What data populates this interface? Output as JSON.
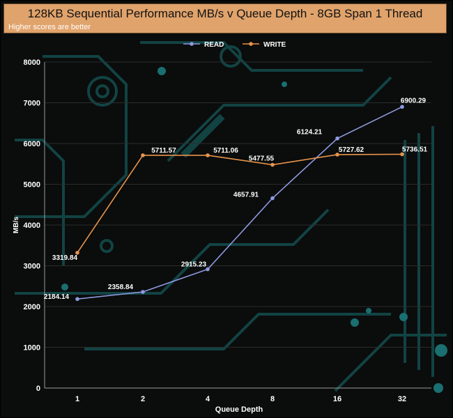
{
  "chart_data": {
    "type": "line",
    "title": "128KB Sequential Performance MB/s v Queue Depth - 8GB Span 1 Thread",
    "subtitle": "Higher scores are better",
    "xlabel": "Queue Depth",
    "ylabel": "MB/s",
    "categories": [
      "1",
      "2",
      "4",
      "8",
      "16",
      "32"
    ],
    "ylim": [
      0,
      8000
    ],
    "yticks": [
      0,
      1000,
      2000,
      3000,
      4000,
      5000,
      6000,
      7000,
      8000
    ],
    "legend_position": "top-center",
    "series": [
      {
        "name": "READ",
        "color": "#8e9ae0",
        "values": [
          2184.14,
          2358.84,
          2915.23,
          4657.91,
          6124.21,
          6900.29
        ],
        "labels": [
          "2184.14",
          "2358.84",
          "2915.23",
          "4657.91",
          "6124.21",
          "6900.29"
        ]
      },
      {
        "name": "WRITE",
        "color": "#e7944c",
        "values": [
          3319.84,
          5711.57,
          5711.06,
          5477.55,
          5727.62,
          5736.51
        ],
        "labels": [
          "3319.84",
          "5711.57",
          "5711.06",
          "5477.55",
          "5727.62",
          "5736.51"
        ]
      }
    ]
  }
}
